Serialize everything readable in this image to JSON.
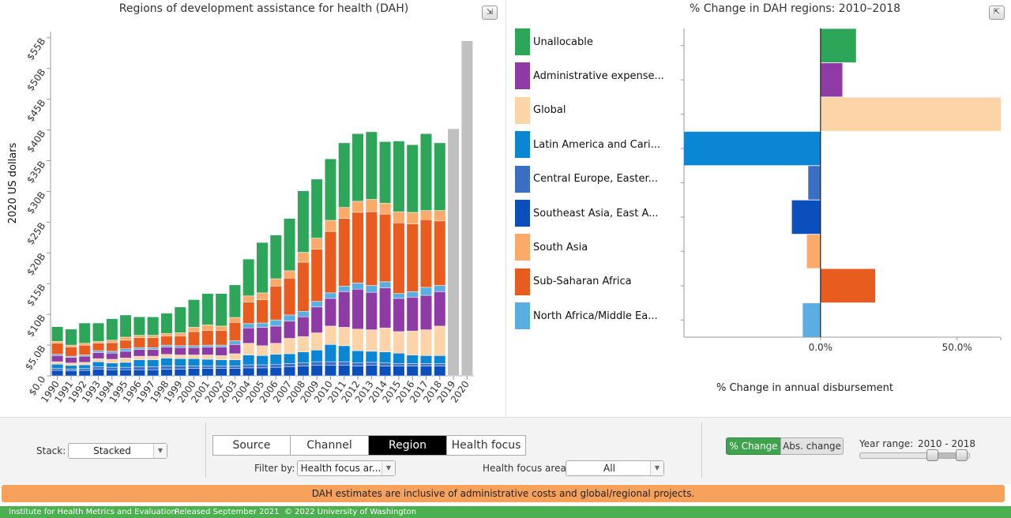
{
  "left_title": "Regions of development assistance for health (DAH)",
  "right_title": "% Change in DAH regions: 2010–2018",
  "ylabel": "2020 US dollars",
  "xlabel_right": "% Change in annual disbursement",
  "collapse_icon": "collapse-arrows-icon",
  "expand_icon": "expand-arrows-icon",
  "colors": {
    "unallocable": "#2ea65a",
    "admin": "#8e3ba6",
    "global": "#fdd3a8",
    "latam": "#0b86d4",
    "cee": "#3a6fc4",
    "seasia": "#0a4fbb",
    "southasia": "#fbaa6a",
    "ssa": "#e85c1f",
    "nafme": "#5aaee2",
    "projection": "#c0c0c0"
  },
  "legend": [
    {
      "key": "unallocable",
      "label": "Unallocable"
    },
    {
      "key": "admin",
      "label": "Administrative expense..."
    },
    {
      "key": "global",
      "label": "Global"
    },
    {
      "key": "latam",
      "label": "Latin America and Cari..."
    },
    {
      "key": "cee",
      "label": "Central Europe, Easter..."
    },
    {
      "key": "seasia",
      "label": "Southeast Asia, East A..."
    },
    {
      "key": "southasia",
      "label": "South Asia"
    },
    {
      "key": "ssa",
      "label": "Sub-Saharan Africa"
    },
    {
      "key": "nafme",
      "label": "North Africa/Middle Ea..."
    }
  ],
  "chart_data": [
    {
      "type": "bar",
      "stacked": true,
      "title": "Regions of development assistance for health (DAH)",
      "ylabel": "2020 US dollars",
      "ylim": [
        0,
        56
      ],
      "yticks": [
        "$0.0",
        "$5.0B",
        "$10B",
        "$15B",
        "$20B",
        "$25B",
        "$30B",
        "$35B",
        "$40B",
        "$45B",
        "$50B",
        "$55B"
      ],
      "categories": [
        "1990",
        "1991",
        "1992",
        "1993",
        "1994",
        "1995",
        "1996",
        "1997",
        "1998",
        "1999",
        "2000",
        "2001",
        "2002",
        "2003",
        "2004",
        "2005",
        "2006",
        "2007",
        "2008",
        "2009",
        "2010",
        "2011",
        "2012",
        "2013",
        "2014",
        "2015",
        "2016",
        "2017",
        "2018",
        "2019",
        "2020"
      ],
      "series": [
        {
          "name": "Southeast Asia, East A...",
          "key": "seasia",
          "values": [
            0.9,
            0.8,
            0.9,
            1.1,
            1.0,
            1.0,
            1.0,
            1.0,
            1.1,
            1.1,
            1.2,
            1.2,
            1.2,
            1.2,
            1.3,
            1.3,
            1.4,
            1.5,
            1.6,
            1.7,
            1.7,
            1.7,
            1.6,
            1.7,
            1.6,
            1.6,
            1.6,
            1.6,
            1.6,
            null,
            null
          ]
        },
        {
          "name": "Central Europe, Easter...",
          "key": "cee",
          "values": [
            0.3,
            0.3,
            0.3,
            0.4,
            0.4,
            0.4,
            0.5,
            0.5,
            0.5,
            0.5,
            0.4,
            0.4,
            0.4,
            0.4,
            0.5,
            0.5,
            0.5,
            0.5,
            0.5,
            0.6,
            0.6,
            0.6,
            0.5,
            0.5,
            0.5,
            0.4,
            0.4,
            0.4,
            0.4,
            null,
            null
          ]
        },
        {
          "name": "Latin America and Cari...",
          "key": "latam",
          "values": [
            0.7,
            0.6,
            0.6,
            0.8,
            0.7,
            0.8,
            1.1,
            1.1,
            1.3,
            1.2,
            1.2,
            1.1,
            1.0,
            1.0,
            1.6,
            1.5,
            1.6,
            1.6,
            1.8,
            1.9,
            2.8,
            2.6,
            2.0,
            1.8,
            1.8,
            1.7,
            1.4,
            1.3,
            1.3,
            null,
            null
          ]
        },
        {
          "name": "Global",
          "key": "global",
          "values": [
            0.4,
            0.4,
            0.4,
            0.5,
            0.6,
            0.7,
            0.6,
            0.6,
            0.6,
            0.6,
            0.6,
            0.7,
            0.7,
            1.0,
            1.9,
            1.6,
            1.8,
            2.5,
            2.5,
            2.8,
            3.0,
            3.0,
            3.5,
            3.5,
            3.9,
            3.5,
            3.9,
            4.2,
            4.8,
            null,
            null
          ]
        },
        {
          "name": "Administrative expense...",
          "key": "admin",
          "values": [
            1.0,
            0.9,
            1.0,
            1.0,
            1.0,
            1.1,
            1.1,
            1.1,
            1.2,
            1.2,
            1.2,
            1.3,
            1.4,
            1.5,
            2.5,
            3.0,
            2.8,
            2.8,
            3.2,
            4.2,
            4.5,
            5.8,
            6.5,
            6.1,
            6.5,
            5.4,
            5.5,
            5.6,
            5.6,
            null,
            null
          ]
        },
        {
          "name": "North Africa/Middle Ea...",
          "key": "nafme",
          "values": [
            0.2,
            0.2,
            0.2,
            0.3,
            0.3,
            0.4,
            0.3,
            0.3,
            0.3,
            0.3,
            0.3,
            0.3,
            0.3,
            0.6,
            0.7,
            0.7,
            1.0,
            1.0,
            0.9,
            0.9,
            0.9,
            0.9,
            1.0,
            1.1,
            1.0,
            0.8,
            0.9,
            1.3,
            1.0,
            null,
            null
          ]
        },
        {
          "name": "Sub-Saharan Africa",
          "key": "ssa",
          "values": [
            1.8,
            1.5,
            1.6,
            1.2,
            1.4,
            1.4,
            1.6,
            1.6,
            1.5,
            1.6,
            2.3,
            2.4,
            2.4,
            3.0,
            3.5,
            3.8,
            5.5,
            6.0,
            8.0,
            8.5,
            10.0,
            11.0,
            11.5,
            12.0,
            11.0,
            11.5,
            11.0,
            11.0,
            10.5,
            null,
            null
          ]
        },
        {
          "name": "South Asia",
          "key": "southasia",
          "values": [
            0.3,
            0.3,
            0.3,
            0.3,
            0.4,
            0.5,
            0.4,
            0.4,
            0.4,
            0.5,
            0.7,
            0.9,
            0.7,
            0.8,
            1.0,
            1.1,
            1.2,
            1.2,
            1.6,
            1.8,
            1.8,
            1.8,
            1.8,
            2.0,
            1.8,
            1.8,
            1.9,
            1.5,
            1.7,
            null,
            null
          ]
        },
        {
          "name": "Unallocable",
          "key": "unallocable",
          "values": [
            2.4,
            2.6,
            3.3,
            3.0,
            3.5,
            3.6,
            3.0,
            3.0,
            3.3,
            4.2,
            4.5,
            5.1,
            5.3,
            5.3,
            6.0,
            8.2,
            7.1,
            8.5,
            10.0,
            9.6,
            10.0,
            10.5,
            11.0,
            11.0,
            10.0,
            11.5,
            11.0,
            12.5,
            11.0,
            null,
            null
          ]
        },
        {
          "name": "Projection",
          "key": "projection",
          "values": [
            null,
            null,
            null,
            null,
            null,
            null,
            null,
            null,
            null,
            null,
            null,
            null,
            null,
            null,
            null,
            null,
            null,
            null,
            null,
            null,
            null,
            null,
            null,
            null,
            null,
            null,
            null,
            null,
            null,
            40.2,
            54.5
          ]
        }
      ]
    },
    {
      "type": "bar",
      "orientation": "horizontal",
      "title": "% Change in DAH regions: 2010–2018",
      "xlabel": "% Change in annual disbursement",
      "xlim": [
        -50,
        66
      ],
      "xticks": [
        "0.0%",
        "50.0%"
      ],
      "categories": [
        "Unallocable",
        "Administrative expense...",
        "Global",
        "Latin America and Cari...",
        "Central Europe, Easter...",
        "Southeast Asia, East A...",
        "South Asia",
        "Sub-Saharan Africa",
        "North Africa/Middle Ea..."
      ],
      "keys": [
        "unallocable",
        "admin",
        "global",
        "latam",
        "cee",
        "seasia",
        "southasia",
        "ssa",
        "nafme"
      ],
      "values": [
        13,
        8,
        66,
        -50,
        -4.5,
        -10.5,
        -5,
        20,
        -6.5
      ]
    }
  ],
  "controls": {
    "stack_label": "Stack:",
    "stack_value": "Stacked",
    "tabs": [
      {
        "label": "Source",
        "active": false
      },
      {
        "label": "Channel",
        "active": false
      },
      {
        "label": "Region",
        "active": true
      },
      {
        "label": "Health focus",
        "active": false
      }
    ],
    "filter_label": "Filter by:",
    "filter_value": "Health focus ar...",
    "hfa_label": "Health focus area:",
    "hfa_value": "All",
    "pct_change": "% Change",
    "abs_change": "Abs. change",
    "year_range_label": "Year range:",
    "year_range_value": "2010 - 2018",
    "dropdown_icon": "chevron-down-icon",
    "slider_start_year": 2010,
    "slider_end_year": 2018
  },
  "banner": "DAH estimates are inclusive of administrative costs and global/regional projects.",
  "footer": {
    "org": "Institute for Health Metrics and Evaluation",
    "released": "Released September 2021",
    "copyright": "© 2022 University of Washington"
  }
}
